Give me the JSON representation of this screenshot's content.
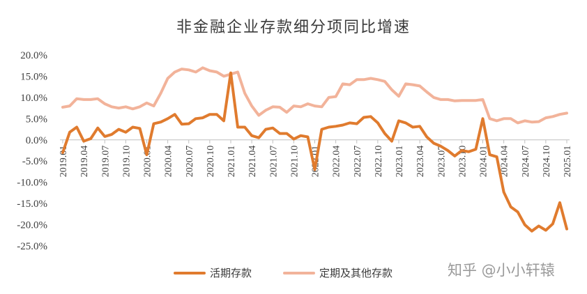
{
  "chart_data": {
    "type": "line",
    "title": "非金融企业存款细分项同比增速",
    "xlabel": "",
    "ylabel": "",
    "ylim": [
      -25,
      20
    ],
    "y_ticks": [
      "20.0%",
      "15.0%",
      "10.0%",
      "5.0%",
      "0.0%",
      "-5.0%",
      "-10.0%",
      "-15.0%",
      "-20.0%",
      "-25.0%"
    ],
    "y_tick_values": [
      20,
      15,
      10,
      5,
      0,
      -5,
      -10,
      -15,
      -20,
      -25
    ],
    "x_tick_labels": [
      "2019.01",
      "2019.04",
      "2019.07",
      "2019.10",
      "2020.01",
      "2020.04",
      "2020.07",
      "2020.10",
      "2021.01",
      "2021.04",
      "2021.07",
      "2021.10",
      "2022.01",
      "2022.04",
      "2022.07",
      "2022.10",
      "2023.01",
      "2023.04",
      "2023.07",
      "2023.10",
      "2024.01",
      "2024.04",
      "2024.07",
      "2024.10",
      "2025.01"
    ],
    "x_start": "2019.01",
    "x_end": "2025.01",
    "grid": false,
    "legend_position": "bottom",
    "series": [
      {
        "name": "活期存款",
        "color": "#E07B2E",
        "values": [
          -3.0,
          1.8,
          3.0,
          -0.3,
          0.3,
          2.8,
          0.8,
          1.3,
          2.5,
          1.8,
          3.0,
          2.7,
          -3.5,
          3.8,
          4.2,
          5.0,
          6.0,
          3.7,
          3.8,
          5.0,
          5.2,
          6.0,
          6.0,
          4.5,
          15.8,
          3.0,
          3.0,
          1.0,
          0.5,
          2.5,
          2.8,
          1.5,
          1.5,
          0.2,
          1.0,
          0.7,
          -7.0,
          2.5,
          3.0,
          3.2,
          3.5,
          4.0,
          3.8,
          5.3,
          5.5,
          4.0,
          1.5,
          -0.3,
          4.5,
          4.0,
          3.0,
          3.2,
          0.7,
          -0.8,
          -1.5,
          -2.5,
          -3.8,
          -2.5,
          -2.8,
          -2.2,
          5.0,
          -3.5,
          -4.0,
          -12.3,
          -15.8,
          -17.0,
          -20.0,
          -21.5,
          -20.3,
          -21.3,
          -19.8,
          -14.8,
          -21.0
        ]
      },
      {
        "name": "定期及其他存款",
        "color": "#F2B39A",
        "values": [
          7.7,
          8.0,
          9.7,
          9.5,
          9.5,
          9.7,
          8.5,
          7.8,
          7.5,
          7.8,
          7.3,
          7.8,
          8.7,
          8.0,
          11.0,
          14.5,
          16.0,
          16.7,
          16.5,
          16.0,
          17.0,
          16.3,
          16.0,
          15.0,
          15.5,
          16.0,
          11.0,
          8.0,
          5.8,
          7.0,
          7.8,
          7.7,
          6.5,
          8.0,
          7.8,
          8.5,
          8.0,
          7.8,
          10.0,
          10.2,
          13.2,
          13.0,
          14.2,
          14.2,
          14.5,
          14.2,
          13.8,
          11.8,
          10.3,
          13.2,
          13.0,
          12.7,
          11.3,
          10.0,
          9.5,
          9.5,
          9.2,
          9.3,
          9.3,
          9.3,
          9.5,
          5.0,
          4.5,
          5.0,
          5.0,
          4.0,
          4.5,
          4.2,
          4.3,
          5.2,
          5.5,
          6.0,
          6.3
        ]
      }
    ]
  },
  "watermark": "知乎 @小小轩辕"
}
